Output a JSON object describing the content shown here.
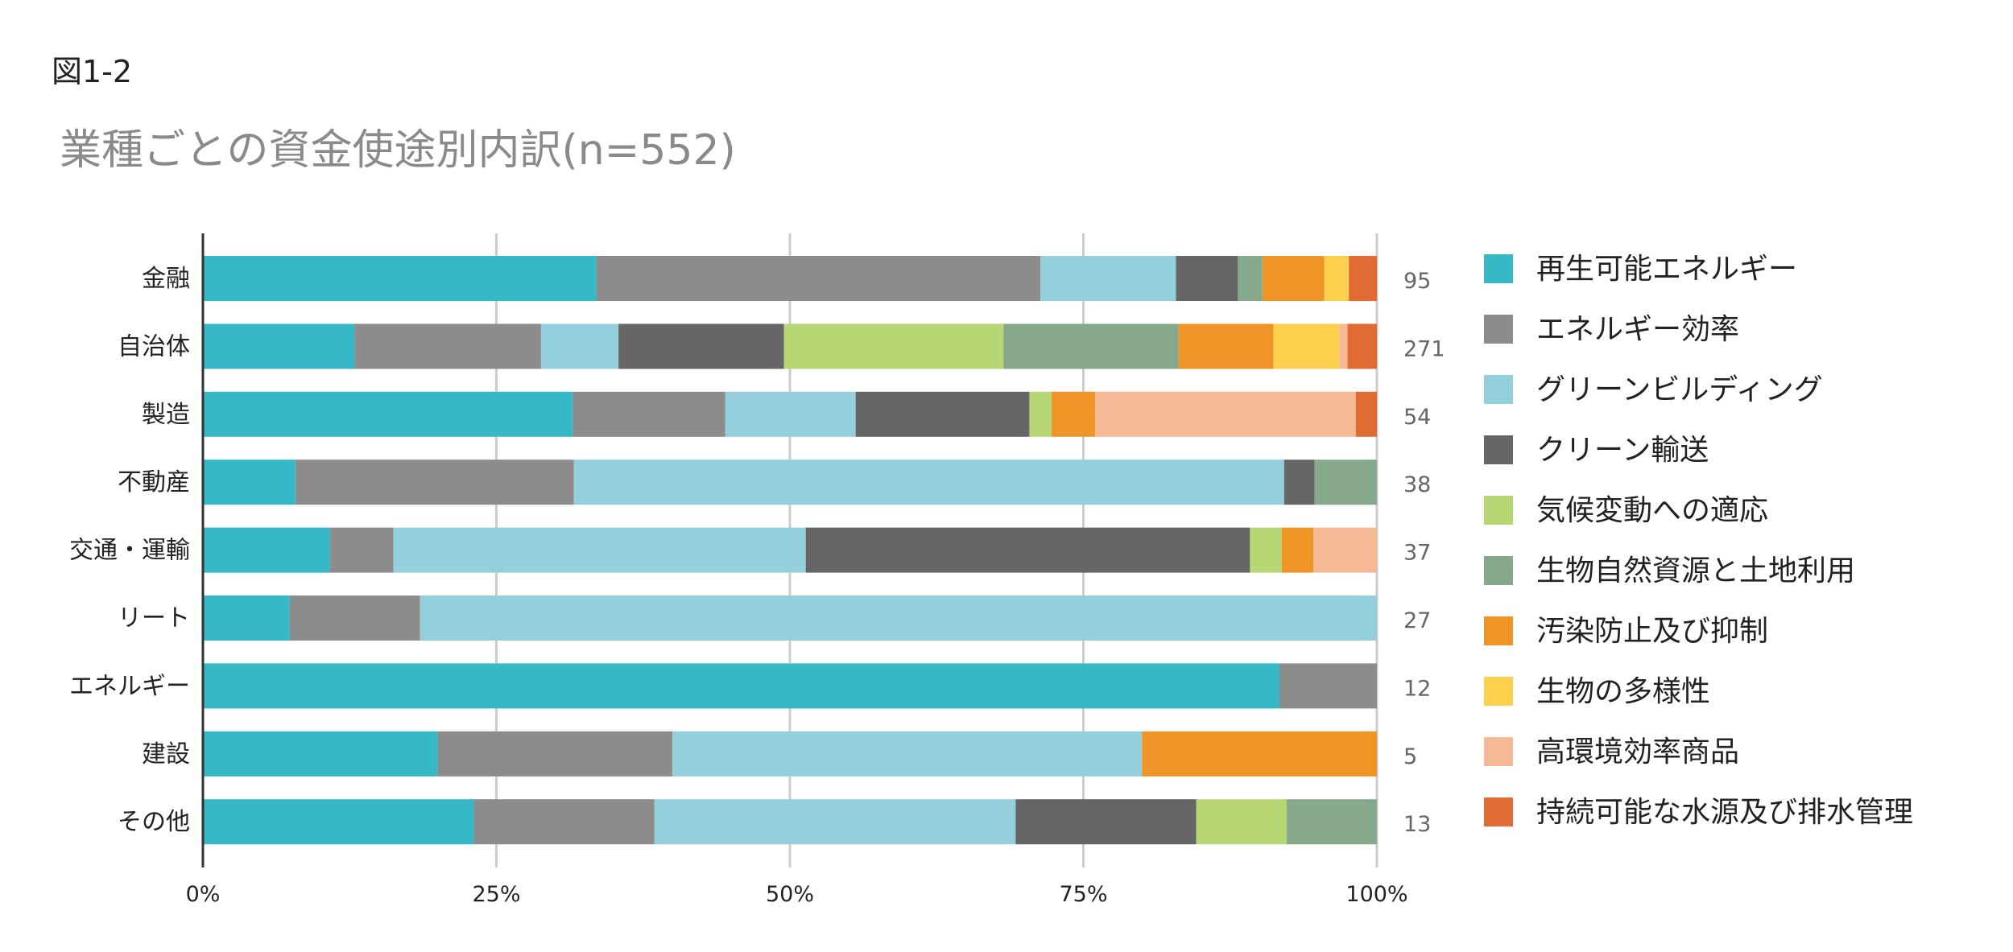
{
  "figure_label": "図1-2",
  "chart_data": {
    "type": "bar",
    "orientation": "horizontal",
    "stacked": "percent",
    "title": "業種ごとの資金使途別内訳(n=552)",
    "xlabel": "",
    "ylabel": "",
    "xlim": [
      0,
      100
    ],
    "x_ticks": [
      "0%",
      "25%",
      "50%",
      "75%",
      "100%"
    ],
    "grid": true,
    "legend_position": "right",
    "categories": [
      "金融",
      "自治体",
      "製造",
      "不動産",
      "交通・運輸",
      "リート",
      "エネルギー",
      "建設",
      "その他"
    ],
    "counts": [
      "95",
      "271",
      "54",
      "38",
      "37",
      "27",
      "12",
      "5",
      "13"
    ],
    "series": [
      {
        "name": "再生可能エネルギー",
        "color": "#36b8c6",
        "values": [
          33.7,
          12.9,
          31.5,
          7.9,
          10.8,
          7.4,
          91.7,
          20.0,
          23.1
        ]
      },
      {
        "name": "エネルギー効率",
        "color": "#8c8c8c",
        "values": [
          38.0,
          15.9,
          13.0,
          23.7,
          5.4,
          11.1,
          8.3,
          20.0,
          15.4
        ]
      },
      {
        "name": "グリーンビルディング",
        "color": "#94d0dc",
        "values": [
          11.6,
          6.6,
          11.1,
          60.5,
          35.1,
          81.5,
          0,
          40.0,
          30.8
        ]
      },
      {
        "name": "クリーン輸送",
        "color": "#666666",
        "values": [
          5.3,
          14.1,
          14.8,
          2.6,
          37.8,
          0,
          0,
          0,
          15.4
        ]
      },
      {
        "name": "気候変動への適応",
        "color": "#b7d674",
        "values": [
          0,
          18.7,
          1.9,
          0,
          2.7,
          0,
          0,
          0,
          7.7
        ]
      },
      {
        "name": "生物自然資源と土地利用",
        "color": "#87a98b",
        "values": [
          2.1,
          14.9,
          0,
          5.3,
          0,
          0,
          0,
          0,
          7.7
        ]
      },
      {
        "name": "汚染防止及び抑制",
        "color": "#ef9427",
        "values": [
          5.3,
          8.1,
          3.7,
          0,
          2.7,
          0,
          0,
          20.0,
          0
        ]
      },
      {
        "name": "生物の多様性",
        "color": "#fdd14e",
        "values": [
          2.1,
          5.6,
          0,
          0,
          0,
          0,
          0,
          0,
          0
        ]
      },
      {
        "name": "高環境効率商品",
        "color": "#f5b995",
        "values": [
          0,
          0.7,
          22.2,
          0,
          5.4,
          0,
          0,
          0,
          0
        ]
      },
      {
        "name": "持続可能な水源及び排水管理",
        "color": "#e06c33",
        "values": [
          2.4,
          2.5,
          1.8,
          0,
          0,
          0,
          0,
          0,
          0
        ]
      }
    ]
  }
}
